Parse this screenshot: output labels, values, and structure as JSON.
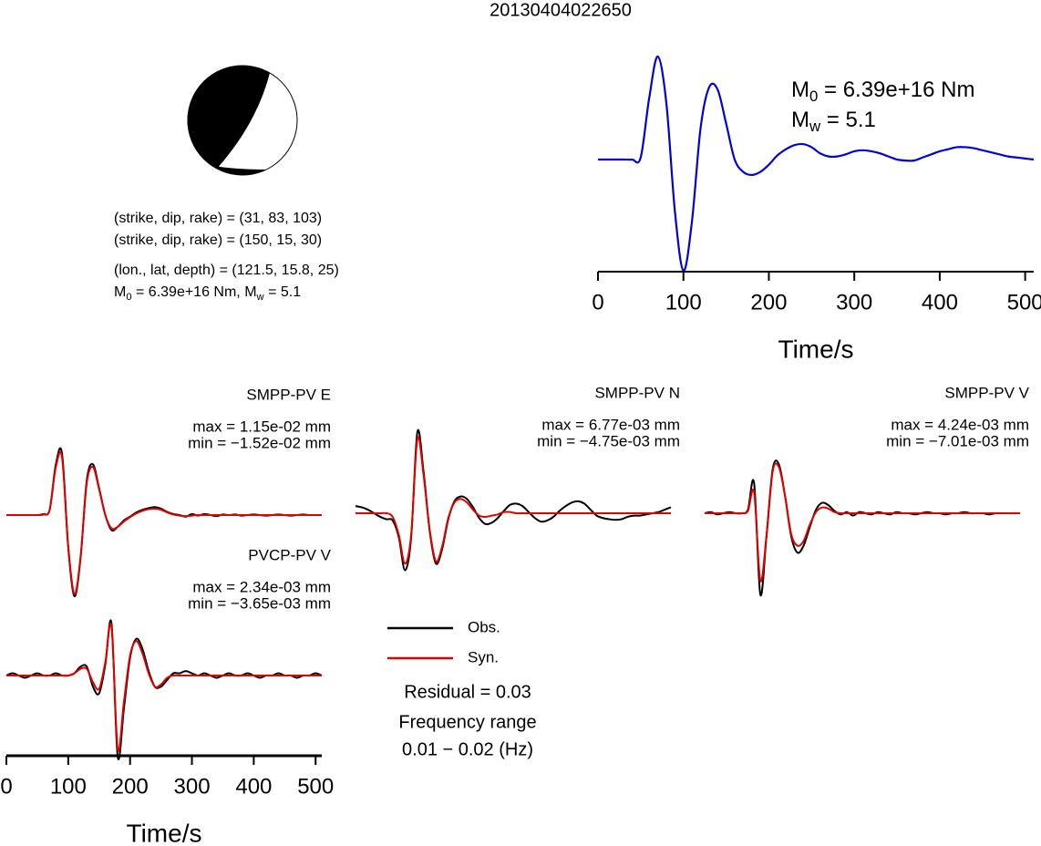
{
  "title": "20130404022650",
  "mechanism": {
    "lines": [
      "(strike, dip, rake) = (31, 83, 103)",
      "(strike, dip, rake) = (150, 15, 30)",
      "(lon., lat, depth) = (121.5, 15.8, 25)"
    ],
    "moment": [
      {
        "text": "M"
      },
      {
        "sub": "0"
      },
      {
        "text": " = 6.39e+16 Nm, M"
      },
      {
        "sub": "w"
      },
      {
        "text": " = 5.1"
      }
    ]
  },
  "inversion": {
    "residual": "Residual = 0.03",
    "frequency_label": "Frequency range",
    "frequency_range": "0.01 − 0.02 (Hz)"
  },
  "chart_data": [
    {
      "type": "line",
      "annotation": [
        [
          {
            "text": "M"
          },
          {
            "sub": "0"
          },
          {
            "text": " = 6.39e+16 Nm"
          }
        ],
        [
          {
            "text": "M"
          },
          {
            "sub": "w"
          },
          {
            "text": " = 5.1"
          }
        ]
      ],
      "x": [
        0,
        10,
        20,
        30,
        40,
        50,
        60,
        70,
        80,
        90,
        100,
        110,
        120,
        130,
        140,
        150,
        160,
        170,
        180,
        190,
        200,
        210,
        220,
        230,
        240,
        250,
        260,
        270,
        280,
        290,
        300,
        310,
        320,
        330,
        340,
        350,
        360,
        370,
        380,
        390,
        400,
        410,
        420,
        430,
        440,
        450,
        460,
        470,
        480,
        490,
        500,
        510
      ],
      "series": [
        {
          "color": "#0000dd",
          "values": [
            0,
            0,
            0,
            0,
            0,
            0.02,
            0.6,
            1.0,
            0.55,
            -0.5,
            -1.08,
            -0.6,
            0.3,
            0.7,
            0.68,
            0.35,
            0,
            -0.12,
            -0.15,
            -0.12,
            -0.05,
            0.04,
            0.1,
            0.14,
            0.15,
            0.12,
            0.06,
            0.03,
            0.03,
            0.05,
            0.08,
            0.09,
            0.08,
            0.06,
            0.03,
            0,
            -0.01,
            -0.01,
            0.02,
            0.05,
            0.08,
            0.1,
            0.12,
            0.12,
            0.11,
            0.09,
            0.07,
            0.05,
            0.03,
            0.02,
            0.01,
            0
          ]
        }
      ],
      "xlim": [
        0,
        510
      ],
      "xticks": [
        0,
        100,
        200,
        300,
        400,
        500
      ],
      "xlabel": "Time/s"
    },
    {
      "type": "line",
      "title": "SMPP-PV E",
      "max_label": "max = 1.15e-02 mm",
      "min_label": "min = −1.52e-02 mm",
      "x": [
        0,
        10,
        20,
        30,
        40,
        50,
        60,
        70,
        80,
        90,
        100,
        110,
        120,
        130,
        140,
        150,
        160,
        170,
        180,
        190,
        200,
        210,
        220,
        230,
        240,
        250,
        260,
        270,
        280,
        290,
        300,
        310,
        320,
        330,
        340,
        350,
        360,
        370,
        380,
        390,
        400,
        410,
        420,
        430,
        440,
        450,
        460,
        470,
        480,
        490,
        500,
        510
      ],
      "series": [
        {
          "name": "Obs.",
          "color": "#000000",
          "values": [
            0,
            0,
            0,
            0,
            0,
            0,
            0.0002,
            0.001,
            0.0095,
            0.0115,
            -0.006,
            -0.0152,
            -0.008,
            0.0065,
            0.0095,
            0.005,
            0,
            -0.0028,
            -0.0022,
            -0.001,
            -0.0003,
            0.0005,
            0.001,
            0.0013,
            0.0015,
            0.0012,
            0.0006,
            0.0002,
            0,
            -0.0003,
            0.0002,
            -0.0001,
            0.0002,
            0,
            -0.0002,
            0.0001,
            0,
            0.0001,
            -0.0001,
            0,
            0.0001,
            0,
            -0.0001,
            0,
            0.0001,
            0,
            -0.0001,
            0,
            0.0001,
            0,
            0,
            0
          ]
        },
        {
          "name": "Syn.",
          "color": "#e00000",
          "values": [
            0,
            0,
            0,
            0,
            0,
            0,
            0.0001,
            0.001,
            0.009,
            0.0108,
            -0.0058,
            -0.0148,
            -0.0078,
            0.006,
            0.009,
            0.0048,
            0,
            -0.0025,
            -0.0022,
            -0.0012,
            -0.0004,
            0.0003,
            0.0008,
            0.0011,
            0.0012,
            0.001,
            0.0005,
            0.0001,
            -0.0001,
            -0.0002,
            -0.0001,
            0,
            0,
            0,
            0,
            0,
            0,
            0,
            0,
            0,
            0,
            0,
            0,
            0,
            0,
            0,
            0,
            0,
            0,
            0,
            0,
            0
          ]
        }
      ],
      "xlim": [
        0,
        510
      ]
    },
    {
      "type": "line",
      "title": "SMPP-PV N",
      "max_label": "max = 6.77e-03 mm",
      "min_label": "min = −4.75e-03 mm",
      "x": [
        0,
        10,
        20,
        30,
        40,
        50,
        60,
        70,
        80,
        90,
        100,
        110,
        120,
        130,
        140,
        150,
        160,
        170,
        180,
        190,
        200,
        210,
        220,
        230,
        240,
        250,
        260,
        270,
        280,
        290,
        300,
        310,
        320,
        330,
        340,
        350,
        360,
        370,
        380,
        390,
        400,
        410,
        420,
        430,
        440,
        450,
        460,
        470,
        480,
        490,
        500,
        510
      ],
      "series": [
        {
          "name": "Obs.",
          "color": "#000000",
          "values": [
            0.0006,
            0.0005,
            0.0003,
            0,
            -0.0003,
            -0.0005,
            -0.0006,
            -0.002,
            -0.00475,
            -0.002,
            0.00677,
            0.0035,
            -0.0015,
            -0.0042,
            -0.003,
            -0.0005,
            0.001,
            0.0014,
            0.0012,
            0.0005,
            -0.0004,
            -0.0009,
            -0.0008,
            -0.0004,
            0.0002,
            0.0007,
            0.0008,
            0.0006,
            0.0001,
            -0.0004,
            -0.0007,
            -0.0006,
            -0.0003,
            0.0002,
            0.0006,
            0.0009,
            0.001,
            0.0008,
            0.0003,
            -0.0002,
            -0.0004,
            -0.0005,
            -0.00055,
            -0.0005,
            -0.0003,
            -0.0002,
            -0.0002,
            -0.0001,
            0,
            0.0001,
            0.0003,
            0.0005
          ]
        },
        {
          "name": "Syn.",
          "color": "#e00000",
          "values": [
            0,
            0,
            0,
            0,
            0,
            0,
            -0.0003,
            -0.0018,
            -0.0042,
            -0.0018,
            0.0062,
            0.0032,
            -0.0014,
            -0.004,
            -0.0028,
            -0.0004,
            0.0009,
            0.0012,
            0.0009,
            0.0003,
            -0.0002,
            -0.0003,
            -0.0002,
            -0.0001,
            0.0001,
            0.0001,
            0,
            0,
            0,
            0,
            0,
            0,
            0,
            0,
            0,
            0,
            0,
            0,
            0,
            0,
            0,
            0,
            0,
            0,
            0,
            0,
            0,
            0,
            0,
            0,
            0,
            0
          ]
        }
      ],
      "xlim": [
        0,
        510
      ]
    },
    {
      "type": "line",
      "title": "SMPP-PV V",
      "max_label": "max = 4.24e-03 mm",
      "min_label": "min = −7.01e-03 mm",
      "x": [
        0,
        10,
        20,
        30,
        40,
        50,
        60,
        70,
        80,
        90,
        100,
        110,
        120,
        130,
        140,
        150,
        160,
        170,
        180,
        190,
        200,
        210,
        220,
        230,
        240,
        250,
        260,
        270,
        280,
        290,
        300,
        310,
        320,
        330,
        340,
        350,
        360,
        370,
        380,
        390,
        400,
        410,
        420,
        430,
        440,
        450,
        460,
        470,
        480,
        490,
        500,
        510
      ],
      "series": [
        {
          "name": "Obs.",
          "color": "#000000",
          "values": [
            0,
            0.0001,
            -0.0001,
            0,
            0.0001,
            0,
            0,
            0.0003,
            0.0026,
            -0.00701,
            -0.002,
            0.0038,
            0.00424,
            0.0015,
            -0.002,
            -0.0034,
            -0.0028,
            -0.0012,
            0.0003,
            0.0009,
            0.0007,
            0.0002,
            -0.0001,
            0.0001,
            -0.0002,
            0.0001,
            0,
            -0.0001,
            0.0001,
            0,
            -0.0001,
            0.0001,
            0,
            0,
            -0.0001,
            0,
            0.0001,
            0,
            0,
            -0.0001,
            0,
            0,
            0.0001,
            0,
            0,
            0,
            -0.0001,
            0,
            0,
            0,
            0,
            0
          ]
        },
        {
          "name": "Syn.",
          "color": "#e00000",
          "values": [
            0,
            0,
            0,
            0,
            0,
            0,
            0,
            0.0002,
            0.0018,
            -0.0058,
            -0.002,
            0.0036,
            0.004,
            0.0015,
            -0.0018,
            -0.0028,
            -0.0024,
            -0.001,
            0.0001,
            0.0005,
            0.0004,
            0.0001,
            0,
            0,
            0,
            0,
            0,
            0,
            0,
            0,
            0,
            0,
            0,
            0,
            0,
            0,
            0,
            0,
            0,
            0,
            0,
            0,
            0,
            0,
            0,
            0,
            0,
            0,
            0,
            0,
            0,
            0
          ]
        }
      ],
      "xlim": [
        0,
        510
      ]
    },
    {
      "type": "line",
      "title": "PVCP-PV V",
      "max_label": "max = 2.34e-03 mm",
      "min_label": "min = −3.65e-03 mm",
      "x": [
        0,
        10,
        20,
        30,
        40,
        50,
        60,
        70,
        80,
        90,
        100,
        110,
        120,
        130,
        140,
        150,
        160,
        170,
        180,
        190,
        200,
        210,
        220,
        230,
        240,
        250,
        260,
        270,
        280,
        290,
        300,
        310,
        320,
        330,
        340,
        350,
        360,
        370,
        380,
        390,
        400,
        410,
        420,
        430,
        440,
        450,
        460,
        470,
        480,
        490,
        500,
        510
      ],
      "series": [
        {
          "name": "Obs.",
          "color": "#000000",
          "values": [
            0,
            0.0001,
            0,
            -0.0001,
            0,
            0.0001,
            0,
            0,
            0.0001,
            0,
            0,
            0.0001,
            0.0004,
            0.0004,
            -0.0005,
            -0.0008,
            0.0005,
            0.00234,
            -0.00365,
            -0.0015,
            0.0008,
            0.00165,
            0.0012,
            0.0002,
            -0.0005,
            -0.0005,
            -0.0002,
            0.0001,
            0.0001,
            0.0002,
            0.0001,
            0,
            0.0001,
            0,
            -0.0001,
            0,
            0.0001,
            0,
            0,
            0.0001,
            0,
            -0.0001,
            0,
            0,
            0.0001,
            0,
            0,
            -0.0001,
            0,
            0,
            0.0001,
            0
          ]
        },
        {
          "name": "Syn.",
          "color": "#e00000",
          "values": [
            0,
            0,
            0,
            0,
            0,
            0,
            0,
            0,
            0,
            0,
            0,
            0.0001,
            0.0003,
            0.0003,
            -0.0003,
            -0.0006,
            0.0006,
            0.0022,
            -0.0033,
            -0.0012,
            0.0009,
            0.00155,
            0.001,
            0.0001,
            -0.0005,
            -0.0004,
            -0.0001,
            0,
            0,
            0,
            0,
            0,
            0,
            0,
            0,
            0,
            0,
            0,
            0,
            0,
            0,
            0,
            0,
            0,
            0,
            0,
            0,
            0,
            0,
            0,
            0,
            0
          ]
        }
      ],
      "xlim": [
        0,
        510
      ],
      "xticks": [
        0,
        100,
        200,
        300,
        400,
        500
      ],
      "xlabel": "Time/s"
    }
  ]
}
